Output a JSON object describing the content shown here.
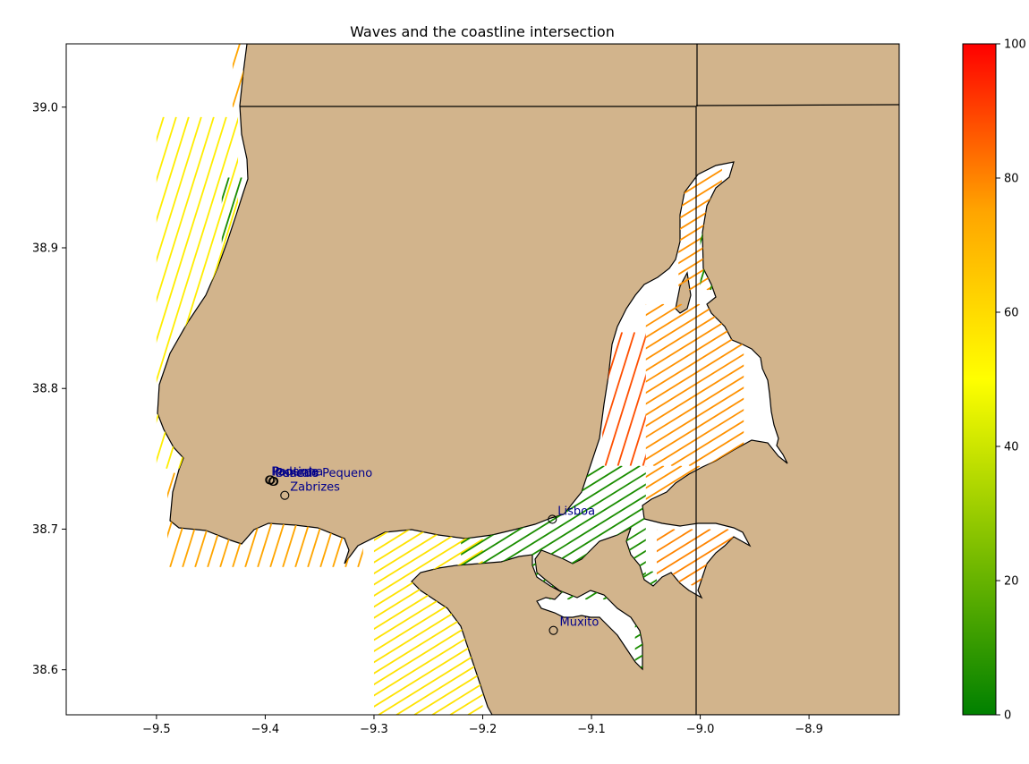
{
  "chart_data": {
    "type": "map",
    "title": "Waves and the coastline intersection",
    "xlim": [
      -9.583,
      -8.817
    ],
    "ylim": [
      38.568,
      39.045
    ],
    "x_ticks": [
      -9.5,
      -9.4,
      -9.3,
      -9.2,
      -9.1,
      -9.0,
      -8.9
    ],
    "x_tick_labels": [
      "−9.5",
      "−9.4",
      "−9.3",
      "−9.2",
      "−9.1",
      "−9.0",
      "−8.9"
    ],
    "y_ticks": [
      38.6,
      38.7,
      38.8,
      38.9,
      39.0
    ],
    "y_tick_labels": [
      "38.6",
      "38.7",
      "38.8",
      "38.9",
      "39.0"
    ],
    "grid": false,
    "land_color": "#d2b48c",
    "water_color": "#ffffff",
    "colorbar": {
      "vmin": 0,
      "vmax": 100,
      "ticks": [
        0,
        20,
        40,
        60,
        80,
        100
      ],
      "tick_labels": [
        "0",
        "20",
        "40",
        "60",
        "80",
        "100"
      ],
      "colors": [
        "#008000",
        "#ffff00",
        "#ffa500",
        "#ff0000"
      ],
      "stops": [
        0,
        0.5,
        0.75,
        1.0
      ]
    },
    "places": [
      {
        "name": "Cascais",
        "lon": -9.393,
        "lat": 38.734
      },
      {
        "name": "Paderne",
        "lon": -9.396,
        "lat": 38.735
      },
      {
        "name": "Pontinha",
        "lon": -9.395,
        "lat": 38.735
      },
      {
        "name": "Penedo Pequeno",
        "lon": -9.392,
        "lat": 38.734
      },
      {
        "name": "Zabrizes",
        "lon": -9.382,
        "lat": 38.724
      },
      {
        "name": "Lisboa",
        "lon": -9.136,
        "lat": 38.707
      },
      {
        "name": "Muxito",
        "lon": -9.135,
        "lat": 38.628
      }
    ],
    "wave_regions": [
      {
        "id": "north-coast",
        "lon_range": [
          -9.5,
          -9.425
        ],
        "lat_range": [
          38.743,
          38.993
        ],
        "value": 55
      },
      {
        "id": "north-top",
        "lon_range": [
          -9.43,
          -9.42
        ],
        "lat_range": [
          39.0,
          39.045
        ],
        "value": 75
      },
      {
        "id": "north-nearshore",
        "lon_range": [
          -9.44,
          -9.42
        ],
        "lat_range": [
          38.78,
          38.95
        ],
        "value": 5
      },
      {
        "id": "cascais-bay",
        "lon_range": [
          -9.49,
          -9.31
        ],
        "lat_range": [
          38.673,
          38.74
        ],
        "value": 75
      },
      {
        "id": "south-coast",
        "lon_range": [
          -9.3,
          -9.2
        ],
        "lat_range": [
          38.568,
          38.7
        ],
        "value": 58
      },
      {
        "id": "estuary-mouth",
        "lon_range": [
          -9.22,
          -9.05
        ],
        "lat_range": [
          38.65,
          38.745
        ],
        "value": 5
      },
      {
        "id": "estuary-north",
        "lon_range": [
          -9.09,
          -9.05
        ],
        "lat_range": [
          38.745,
          38.84
        ],
        "value": 88
      },
      {
        "id": "estuary-main",
        "lon_range": [
          -9.05,
          -8.96
        ],
        "lat_range": [
          38.745,
          38.86
        ],
        "value": 78
      },
      {
        "id": "estuary-east",
        "lon_range": [
          -9.05,
          -8.98
        ],
        "lat_range": [
          38.71,
          38.745
        ],
        "value": 78
      },
      {
        "id": "estuary-southeast",
        "lon_range": [
          -9.04,
          -8.97
        ],
        "lat_range": [
          38.66,
          38.7
        ],
        "value": 80
      },
      {
        "id": "estuary-green-arm",
        "lon_range": [
          -9.06,
          -9.04
        ],
        "lat_range": [
          38.6,
          38.67
        ],
        "value": 5
      },
      {
        "id": "estuary-upper",
        "lon_range": [
          -9.02,
          -8.98
        ],
        "lat_range": [
          38.87,
          38.96
        ],
        "value": 78
      },
      {
        "id": "estuary-channel",
        "lon_range": [
          -9.0,
          -8.98
        ],
        "lat_range": [
          38.87,
          38.92
        ],
        "value": 5
      }
    ]
  }
}
